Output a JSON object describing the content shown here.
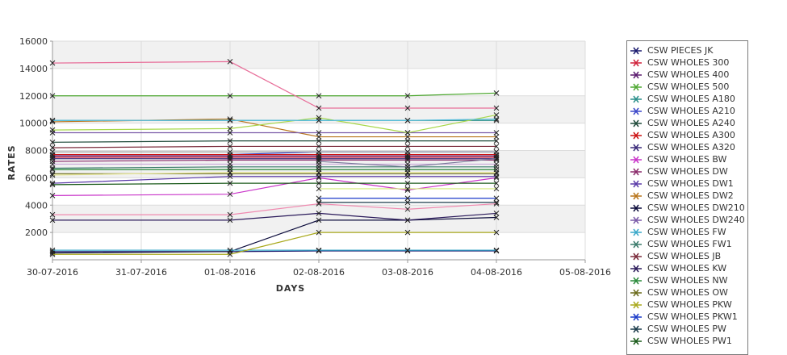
{
  "chart_data": {
    "type": "line",
    "xlabel": "DAYS",
    "ylabel": "RATES",
    "categories": [
      "30-07-2016",
      "31-07-2016",
      "01-08-2016",
      "02-08-2016",
      "03-08-2016",
      "04-08-2016",
      "05-08-2016"
    ],
    "ylim": [
      0,
      16000
    ],
    "yticks": [
      2000,
      4000,
      6000,
      8000,
      10000,
      12000,
      14000,
      16000
    ],
    "grid": true,
    "legend_position": "right",
    "series": [
      {
        "name": "CSW PIECES JK",
        "color": "#1a1a6e",
        "x": [
          "30-07-2016",
          "01-08-2016",
          "02-08-2016",
          "03-08-2016",
          "04-08-2016"
        ],
        "values": [
          600,
          600,
          650,
          650,
          650
        ]
      },
      {
        "name": "CSW WHOLES 300",
        "color": "#d0213a",
        "x": [
          "30-07-2016",
          "01-08-2016",
          "02-08-2016",
          "03-08-2016",
          "04-08-2016"
        ],
        "values": [
          7500,
          7500,
          7500,
          7500,
          7500
        ]
      },
      {
        "name": "CSW WHOLES 400",
        "color": "#5a1a6e",
        "x": [
          "30-07-2016",
          "01-08-2016",
          "02-08-2016",
          "03-08-2016",
          "04-08-2016"
        ],
        "values": [
          7600,
          7600,
          7600,
          7600,
          7600
        ]
      },
      {
        "name": "CSW WHOLES 500",
        "color": "#4fa832",
        "x": [
          "30-07-2016",
          "01-08-2016",
          "02-08-2016",
          "03-08-2016",
          "04-08-2016"
        ],
        "values": [
          12000,
          12000,
          12000,
          12000,
          12200
        ]
      },
      {
        "name": "CSW WHOLES A180",
        "color": "#2a8f8a",
        "x": [
          "30-07-2016",
          "01-08-2016",
          "02-08-2016",
          "03-08-2016",
          "04-08-2016"
        ],
        "values": [
          10200,
          10200,
          10200,
          10200,
          10200
        ]
      },
      {
        "name": "CSW WHOLES A210",
        "color": "#3b47c9",
        "x": [
          "30-07-2016",
          "01-08-2016",
          "02-08-2016",
          "03-08-2016",
          "04-08-2016"
        ],
        "values": [
          7700,
          7700,
          7900,
          7900,
          7900
        ]
      },
      {
        "name": "CSW WHOLES A240",
        "color": "#1f4a3a",
        "x": [
          "30-07-2016",
          "01-08-2016",
          "02-08-2016",
          "03-08-2016",
          "04-08-2016"
        ],
        "values": [
          8600,
          8700,
          8700,
          8700,
          8700
        ]
      },
      {
        "name": "CSW WHOLES A300",
        "color": "#cc1111",
        "x": [
          "30-07-2016",
          "01-08-2016",
          "02-08-2016",
          "03-08-2016",
          "04-08-2016"
        ],
        "values": [
          7700,
          7700,
          7700,
          7700,
          7700
        ]
      },
      {
        "name": "CSW WHOLES A320",
        "color": "#3a2a7a",
        "x": [
          "30-07-2016",
          "01-08-2016",
          "02-08-2016",
          "03-08-2016",
          "04-08-2016"
        ],
        "values": [
          7400,
          7400,
          7400,
          7400,
          7400
        ]
      },
      {
        "name": "CSW WHOLES BW",
        "color": "#c934c9",
        "x": [
          "30-07-2016",
          "01-08-2016",
          "02-08-2016",
          "03-08-2016",
          "04-08-2016"
        ],
        "values": [
          4700,
          4800,
          6000,
          5100,
          6000
        ]
      },
      {
        "name": "CSW WHOLES DW",
        "color": "#8a2a6a",
        "x": [
          "30-07-2016",
          "01-08-2016",
          "02-08-2016",
          "03-08-2016",
          "04-08-2016"
        ],
        "values": [
          7200,
          7300,
          7300,
          7300,
          7300
        ]
      },
      {
        "name": "CSW WHOLES DW1",
        "color": "#5a3aa8",
        "x": [
          "30-07-2016",
          "01-08-2016",
          "02-08-2016",
          "03-08-2016",
          "04-08-2016"
        ],
        "values": [
          5600,
          6100,
          6100,
          6100,
          6100
        ]
      },
      {
        "name": "CSW WHOLES DW2",
        "color": "#b8741a",
        "x": [
          "30-07-2016",
          "01-08-2016",
          "02-08-2016",
          "03-08-2016",
          "04-08-2016"
        ],
        "values": [
          10100,
          10300,
          9000,
          9000,
          9000
        ]
      },
      {
        "name": "CSW WHOLES DW210",
        "color": "#0a0a3a",
        "x": [
          "30-07-2016",
          "01-08-2016",
          "02-08-2016",
          "03-08-2016",
          "04-08-2016"
        ],
        "values": [
          500,
          600,
          2900,
          2900,
          3100
        ]
      },
      {
        "name": "CSW WHOLES DW240",
        "color": "#7a5aa8",
        "x": [
          "30-07-2016",
          "01-08-2016",
          "02-08-2016",
          "03-08-2016",
          "04-08-2016"
        ],
        "values": [
          9300,
          9300,
          9300,
          9300,
          9300
        ]
      },
      {
        "name": "CSW WHOLES FW",
        "color": "#3aa8c9",
        "x": [
          "30-07-2016",
          "01-08-2016",
          "02-08-2016",
          "03-08-2016",
          "04-08-2016"
        ],
        "values": [
          700,
          700,
          700,
          700,
          700
        ]
      },
      {
        "name": "CSW WHOLES FW1",
        "color": "#3a7a6a",
        "x": [
          "30-07-2016",
          "01-08-2016",
          "02-08-2016",
          "03-08-2016",
          "04-08-2016"
        ],
        "values": [
          6700,
          6800,
          6800,
          6800,
          6800
        ]
      },
      {
        "name": "CSW WHOLES JB",
        "color": "#7a2a3a",
        "x": [
          "30-07-2016",
          "01-08-2016",
          "02-08-2016",
          "03-08-2016",
          "04-08-2016"
        ],
        "values": [
          8200,
          8300,
          8300,
          8300,
          8300
        ]
      },
      {
        "name": "CSW WHOLES KW",
        "color": "#2a1a5a",
        "x": [
          "30-07-2016",
          "01-08-2016",
          "02-08-2016",
          "03-08-2016",
          "04-08-2016"
        ],
        "values": [
          2900,
          2900,
          3400,
          2900,
          3400
        ]
      },
      {
        "name": "CSW WHOLES NW",
        "color": "#2a8a3a",
        "x": [
          "30-07-2016",
          "01-08-2016",
          "02-08-2016",
          "03-08-2016",
          "04-08-2016"
        ],
        "values": [
          6600,
          6600,
          6600,
          6600,
          6600
        ]
      },
      {
        "name": "CSW WHOLES OW",
        "color": "#6a6a1a",
        "x": [
          "30-07-2016",
          "01-08-2016",
          "02-08-2016",
          "03-08-2016",
          "04-08-2016"
        ],
        "values": [
          6300,
          6300,
          6300,
          6300,
          6300
        ]
      },
      {
        "name": "CSW WHOLES PKW",
        "color": "#a8a81a",
        "x": [
          "30-07-2016",
          "01-08-2016",
          "02-08-2016",
          "03-08-2016",
          "04-08-2016"
        ],
        "values": [
          400,
          400,
          2000,
          2000,
          2000
        ]
      },
      {
        "name": "CSW WHOLES PKW1",
        "color": "#1a3ac9",
        "x": [
          "02-08-2016",
          "03-08-2016",
          "04-08-2016"
        ],
        "values": [
          4500,
          4500,
          4500
        ]
      },
      {
        "name": "CSW WHOLES PW",
        "color": "#1a3a4a",
        "x": [
          "02-08-2016",
          "03-08-2016",
          "04-08-2016"
        ],
        "values": [
          4200,
          4200,
          4200
        ]
      },
      {
        "name": "CSW WHOLES PW1",
        "color": "#1a5a1a",
        "x": [
          "30-07-2016",
          "01-08-2016",
          "02-08-2016",
          "03-08-2016",
          "04-08-2016"
        ],
        "values": [
          5500,
          5600,
          5600,
          5600,
          5600
        ]
      },
      {
        "name": "",
        "color": "#e86f9a",
        "x": [
          "30-07-2016",
          "01-08-2016",
          "02-08-2016",
          "03-08-2016",
          "04-08-2016"
        ],
        "values": [
          14400,
          14500,
          11100,
          11100,
          11100
        ]
      },
      {
        "name": "",
        "color": "#a8d84a",
        "x": [
          "30-07-2016",
          "01-08-2016",
          "02-08-2016",
          "03-08-2016",
          "04-08-2016"
        ],
        "values": [
          9500,
          9600,
          10400,
          9300,
          10600
        ]
      },
      {
        "name": "",
        "color": "#f08ab0",
        "x": [
          "30-07-2016",
          "01-08-2016",
          "02-08-2016",
          "03-08-2016",
          "04-08-2016"
        ],
        "values": [
          3300,
          3300,
          4100,
          3700,
          4100
        ]
      },
      {
        "name": "",
        "color": "#e8e89a",
        "x": [
          "30-07-2016",
          "01-08-2016",
          "02-08-2016",
          "03-08-2016",
          "04-08-2016"
        ],
        "values": [
          6200,
          6400,
          6400,
          6400,
          6400
        ]
      },
      {
        "name": "",
        "color": "#d4ea7a",
        "x": [
          "02-08-2016",
          "03-08-2016",
          "04-08-2016"
        ],
        "values": [
          5200,
          5200,
          5200
        ]
      },
      {
        "name": "",
        "color": "#9a9a9a",
        "x": [
          "30-07-2016",
          "01-08-2016",
          "02-08-2016",
          "03-08-2016",
          "04-08-2016"
        ],
        "values": [
          7900,
          7900,
          7900,
          7900,
          7900
        ]
      },
      {
        "name": "",
        "color": "#c8a8d8",
        "x": [
          "30-07-2016",
          "01-08-2016",
          "02-08-2016",
          "03-08-2016",
          "04-08-2016"
        ],
        "values": [
          7000,
          7000,
          7000,
          7000,
          7000
        ]
      },
      {
        "name": "",
        "color": "#5ac0e0",
        "x": [
          "30-07-2016",
          "01-08-2016",
          "02-08-2016",
          "03-08-2016",
          "04-08-2016"
        ],
        "values": [
          10200,
          10200,
          10200,
          10200,
          10300
        ]
      },
      {
        "name": "",
        "color": "#7a7a9a",
        "x": [
          "02-08-2016",
          "03-08-2016",
          "04-08-2016"
        ],
        "values": [
          7200,
          6800,
          7400
        ]
      }
    ]
  }
}
